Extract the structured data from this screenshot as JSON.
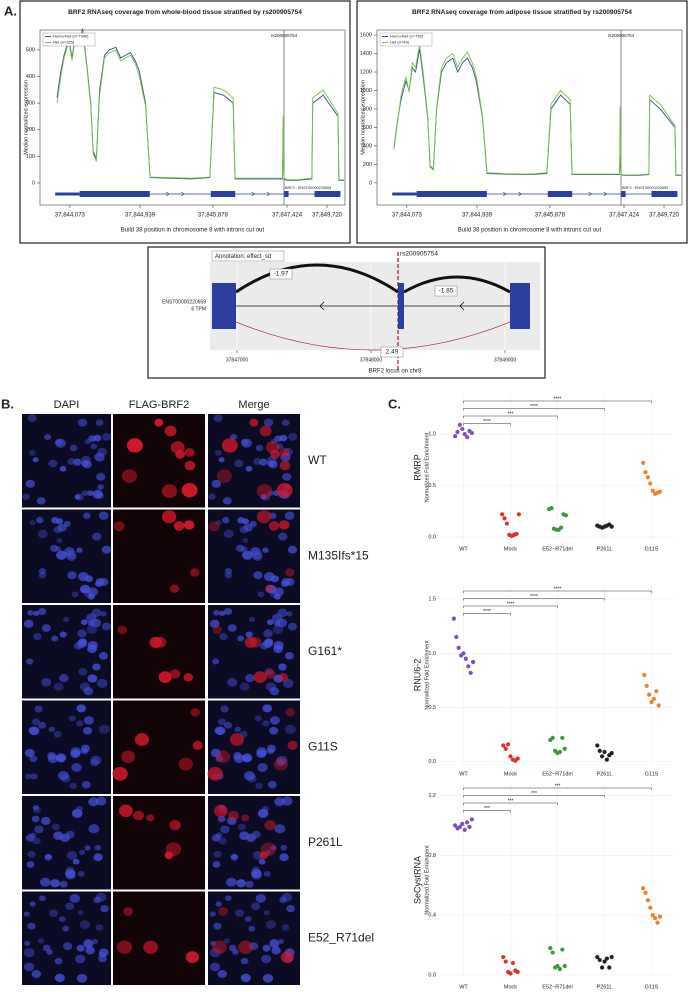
{
  "panel_labels": [
    "A.",
    "B.",
    "C."
  ],
  "panel_a": {
    "coverage_charts": [
      {
        "type": "line",
        "title": "BRF2 RNAseq coverage from whole-blood tissue stratified by rs200905754",
        "y_label": "Median normalized expression",
        "x_label": "Build 38 position in chromosome 8 with introns cut out",
        "marker_label": "rs200905754",
        "transcript_label": "BRF2 : ENST00000220659",
        "x": [
          37843912,
          37843960,
          37844000,
          37844060,
          37844100,
          37844140,
          37844180,
          37844230,
          37844280,
          37844330,
          37844360,
          37844400,
          37844440,
          37844500,
          37844560,
          37844640,
          37844700,
          37844760,
          37844820,
          37844880,
          37844930,
          37845010,
          37845068,
          37845300,
          37845600,
          37845838,
          37845900,
          37846100,
          37846300,
          37846338,
          37846800,
          37847330,
          37847341,
          37847360,
          37847424,
          37848000,
          37848850,
          37848900,
          37849500,
          37850350,
          37850400,
          37850700
        ],
        "series": [
          {
            "name": "Homo-Ref (n=7946)",
            "color": "#2f4f94",
            "values": [
              320,
              420,
              480,
              540,
              470,
              560,
              520,
              580,
              450,
              300,
              120,
              90,
              350,
              480,
              500,
              510,
              470,
              480,
              490,
              460,
              420,
              300,
              20,
              18,
              15,
              20,
              340,
              330,
              300,
              15,
              15,
              15,
              160,
              15,
              10,
              10,
              15,
              300,
              330,
              250,
              10,
              10
            ]
          },
          {
            "name": "Het (n=325)",
            "color": "#78c341",
            "values": [
              300,
              400,
              470,
              530,
              460,
              550,
              530,
              570,
              440,
              290,
              110,
              80,
              330,
              470,
              490,
              500,
              460,
              470,
              480,
              450,
              400,
              290,
              22,
              20,
              18,
              22,
              360,
              350,
              320,
              18,
              18,
              18,
              250,
              18,
              12,
              12,
              18,
              320,
              350,
              260,
              12,
              12
            ]
          }
        ],
        "xlim": [
          37843700,
          37850750
        ],
        "xticks": [
          {
            "value": 37844073,
            "label": "37,844,073"
          },
          {
            "value": 37844939,
            "label": "37,844,939"
          },
          {
            "value": 37845878,
            "label": "37,845,878"
          },
          {
            "value": 37847424,
            "label": "37,847,424"
          },
          {
            "value": 37849720,
            "label": "37,849,720"
          }
        ],
        "ylim": [
          -83,
          575
        ],
        "yticks": [
          0,
          100,
          200,
          300,
          400,
          500
        ]
      },
      {
        "type": "line",
        "title": "BRF2 RNAseq coverage from adipose tissue stratified by rs200905754",
        "y_label": "Median normalized expression",
        "x_label": "Build 38 position in chromosome 8 with introns cut out",
        "marker_label": "rs200905754",
        "transcript_label": "BRF2 : ENST00000220659",
        "x": [
          37843912,
          37843960,
          37844000,
          37844060,
          37844100,
          37844140,
          37844180,
          37844230,
          37844280,
          37844330,
          37844360,
          37844400,
          37844440,
          37844500,
          37844560,
          37844640,
          37844700,
          37844760,
          37844820,
          37844880,
          37844930,
          37845010,
          37845068,
          37845300,
          37845600,
          37845838,
          37845900,
          37846100,
          37846300,
          37846338,
          37846800,
          37847330,
          37847341,
          37847360,
          37847424,
          37848000,
          37848850,
          37848900,
          37849500,
          37850350,
          37850400,
          37850700
        ],
        "series": [
          {
            "name": "Homo-Ref (n=752)",
            "color": "#2f4f94",
            "values": [
              380,
              700,
              900,
              1100,
              1000,
              1250,
              1200,
              1450,
              1100,
              700,
              180,
              150,
              800,
              1200,
              1300,
              1350,
              1200,
              1300,
              1350,
              1250,
              1100,
              700,
              100,
              95,
              90,
              100,
              800,
              950,
              850,
              90,
              90,
              90,
              300,
              90,
              80,
              80,
              90,
              900,
              800,
              600,
              80,
              80
            ]
          },
          {
            "name": "Het (n=49)",
            "color": "#78c341",
            "values": [
              360,
              680,
              950,
              1150,
              980,
              1300,
              1250,
              1500,
              1150,
              720,
              170,
              140,
              820,
              1250,
              1350,
              1400,
              1250,
              1350,
              1420,
              1300,
              1150,
              720,
              110,
              100,
              95,
              110,
              850,
              1000,
              900,
              95,
              95,
              95,
              820,
              95,
              85,
              85,
              95,
              950,
              850,
              620,
              85,
              85
            ]
          }
        ],
        "xlim": [
          37843700,
          37850750
        ],
        "xticks": [
          {
            "value": 37844073,
            "label": "37,844,073"
          },
          {
            "value": 37844939,
            "label": "37,844,939"
          },
          {
            "value": 37845878,
            "label": "37,845,878"
          },
          {
            "value": 37847424,
            "label": "37,847,424"
          },
          {
            "value": 37849720,
            "label": "37,849,720"
          }
        ],
        "ylim": [
          -240,
          1655
        ],
        "yticks": [
          0,
          200,
          400,
          600,
          800,
          1000,
          1200,
          1400,
          1600
        ]
      }
    ],
    "sashimi": {
      "annotation": "Annotation: effect_sd",
      "variant": "rs200905754",
      "transcript": "ENST00000220659",
      "tpm": "6 TPM",
      "junctions": [
        -1.97,
        -1.85,
        2.49
      ],
      "xticks": [
        37847000,
        37848000,
        37849000
      ],
      "x_label": "BRF2 locus on chr8"
    }
  },
  "panel_b": {
    "columns": [
      "DAPI",
      "FLAG-BRF2",
      "Merge"
    ],
    "rows": [
      "WT",
      "M135Ifs*15",
      "G161*",
      "G11S",
      "P261L",
      "E52_R71del"
    ]
  },
  "panel_c": {
    "charts": [
      {
        "type": "scatter",
        "y_name": "RMRP",
        "y_label": "Normalized Fold Enrichment",
        "categories": [
          "WT",
          "Mock",
          "E52−R71del",
          "P261L",
          "G11S"
        ],
        "colors": [
          "#7b4fc4",
          "#e0312a",
          "#3a9a3a",
          "#222222",
          "#f0802a"
        ],
        "values": [
          [
            0.98,
            1.02,
            1.09,
            1.05,
            1.0,
            0.97,
            1.03,
            1.01
          ],
          [
            0.22,
            0.18,
            0.13,
            0.02,
            0.01,
            0.02,
            0.03,
            0.22
          ],
          [
            0.27,
            0.28,
            0.08,
            0.07,
            0.07,
            0.09,
            0.22,
            0.21
          ],
          [
            0.11,
            0.1,
            0.09,
            0.1,
            0.11,
            0.12,
            0.1
          ],
          [
            0.72,
            0.63,
            0.58,
            0.52,
            0.45,
            0.42,
            0.43,
            0.44
          ]
        ],
        "significance": [
          "****",
          "***",
          "****",
          "****"
        ],
        "ylim": [
          -0.03,
          1.38
        ],
        "yticks": [
          {
            "value": 0,
            "label": "0.0"
          },
          {
            "value": 0.5,
            "label": "0.5"
          },
          {
            "value": 1,
            "label": "1.0"
          }
        ]
      },
      {
        "type": "scatter",
        "y_name": "RNU6-2",
        "y_label": "Normalized Fold Enrichment",
        "categories": [
          "WT",
          "Mock",
          "E52−R71del",
          "P261L",
          "G11S"
        ],
        "colors": [
          "#7b4fc4",
          "#e0312a",
          "#3a9a3a",
          "#222222",
          "#f0802a"
        ],
        "values": [
          [
            1.32,
            1.15,
            1.05,
            0.98,
            1.0,
            0.95,
            0.88,
            0.82,
            0.92
          ],
          [
            0.15,
            0.12,
            0.16,
            0.05,
            0.02,
            0.01,
            0.03
          ],
          [
            0.2,
            0.22,
            0.1,
            0.08,
            0.09,
            0.22,
            0.12
          ],
          [
            0.15,
            0.1,
            0.05,
            0.09,
            0.02,
            0.06,
            0.08
          ],
          [
            0.8,
            0.7,
            0.62,
            0.55,
            0.58,
            0.65,
            0.52
          ]
        ],
        "significance": [
          "****",
          "****",
          "****",
          "****"
        ],
        "ylim": [
          -0.03,
          1.63
        ],
        "yticks": [
          {
            "value": 0,
            "label": "0.0"
          },
          {
            "value": 0.5,
            "label": "0.5"
          },
          {
            "value": 1,
            "label": "1.0"
          },
          {
            "value": 1.5,
            "label": "1.5"
          }
        ]
      },
      {
        "type": "scatter",
        "y_name": "SeCystRNA",
        "y_label": "Normalized Fold Enrichment",
        "categories": [
          "WT",
          "Mock",
          "E52−R71del",
          "P261L",
          "G11S"
        ],
        "colors": [
          "#7b4fc4",
          "#e0312a",
          "#3a9a3a",
          "#222222",
          "#f0802a"
        ],
        "values": [
          [
            1.0,
            0.98,
            0.99,
            1.01,
            0.97,
            1.02,
            0.99,
            1.04
          ],
          [
            0.12,
            0.09,
            0.02,
            0.01,
            0.08,
            0.03,
            0.02
          ],
          [
            0.18,
            0.15,
            0.05,
            0.06,
            0.04,
            0.17,
            0.06
          ],
          [
            0.12,
            0.1,
            0.05,
            0.09,
            0.11,
            0.05,
            0.12
          ],
          [
            0.58,
            0.55,
            0.5,
            0.45,
            0.4,
            0.38,
            0.35,
            0.39
          ]
        ],
        "significance": [
          "***",
          "***",
          "***",
          "***"
        ],
        "ylim": [
          -0.02,
          1.29
        ],
        "yticks": [
          {
            "value": 0,
            "label": "0.0"
          },
          {
            "value": 0.4,
            "label": "0.4"
          },
          {
            "value": 0.8,
            "label": "0.8"
          },
          {
            "value": 1.2,
            "label": "1.2"
          }
        ]
      }
    ]
  }
}
